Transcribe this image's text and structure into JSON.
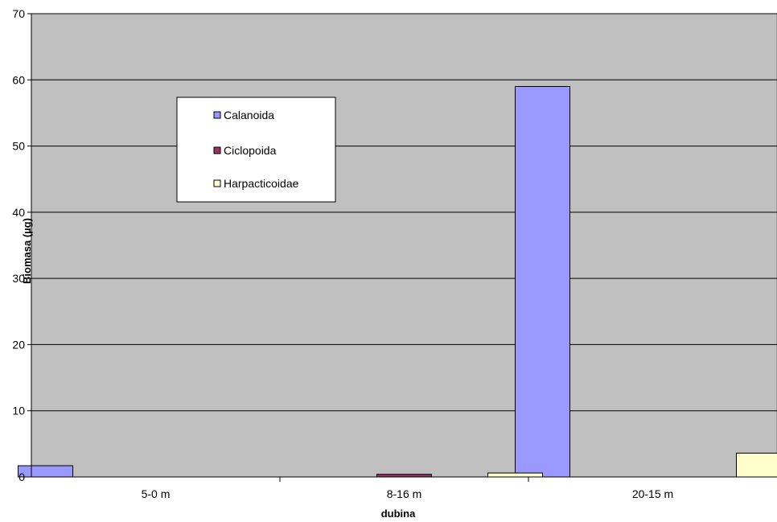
{
  "chart_data": {
    "type": "bar",
    "title": "",
    "xlabel": "dubina",
    "ylabel": "Biomasa (µg)",
    "categories": [
      "5-0 m",
      "8-16 m",
      "20-15 m"
    ],
    "series": [
      {
        "name": "Calanoida",
        "values": [
          1.7,
          0,
          59
        ],
        "color": "#9999ff"
      },
      {
        "name": "Ciclopoida",
        "values": [
          0,
          0.4,
          0
        ],
        "color": "#993366"
      },
      {
        "name": "Harpacticoidae",
        "values": [
          0,
          0.6,
          3.6
        ],
        "color": "#ffffcc"
      }
    ],
    "ylim": [
      0,
      70
    ],
    "yticks": [
      0,
      10,
      20,
      30,
      40,
      50,
      60,
      70
    ],
    "grid": true,
    "legend_position": "upper-left-inside",
    "plot_background": "#c0c0c0"
  }
}
